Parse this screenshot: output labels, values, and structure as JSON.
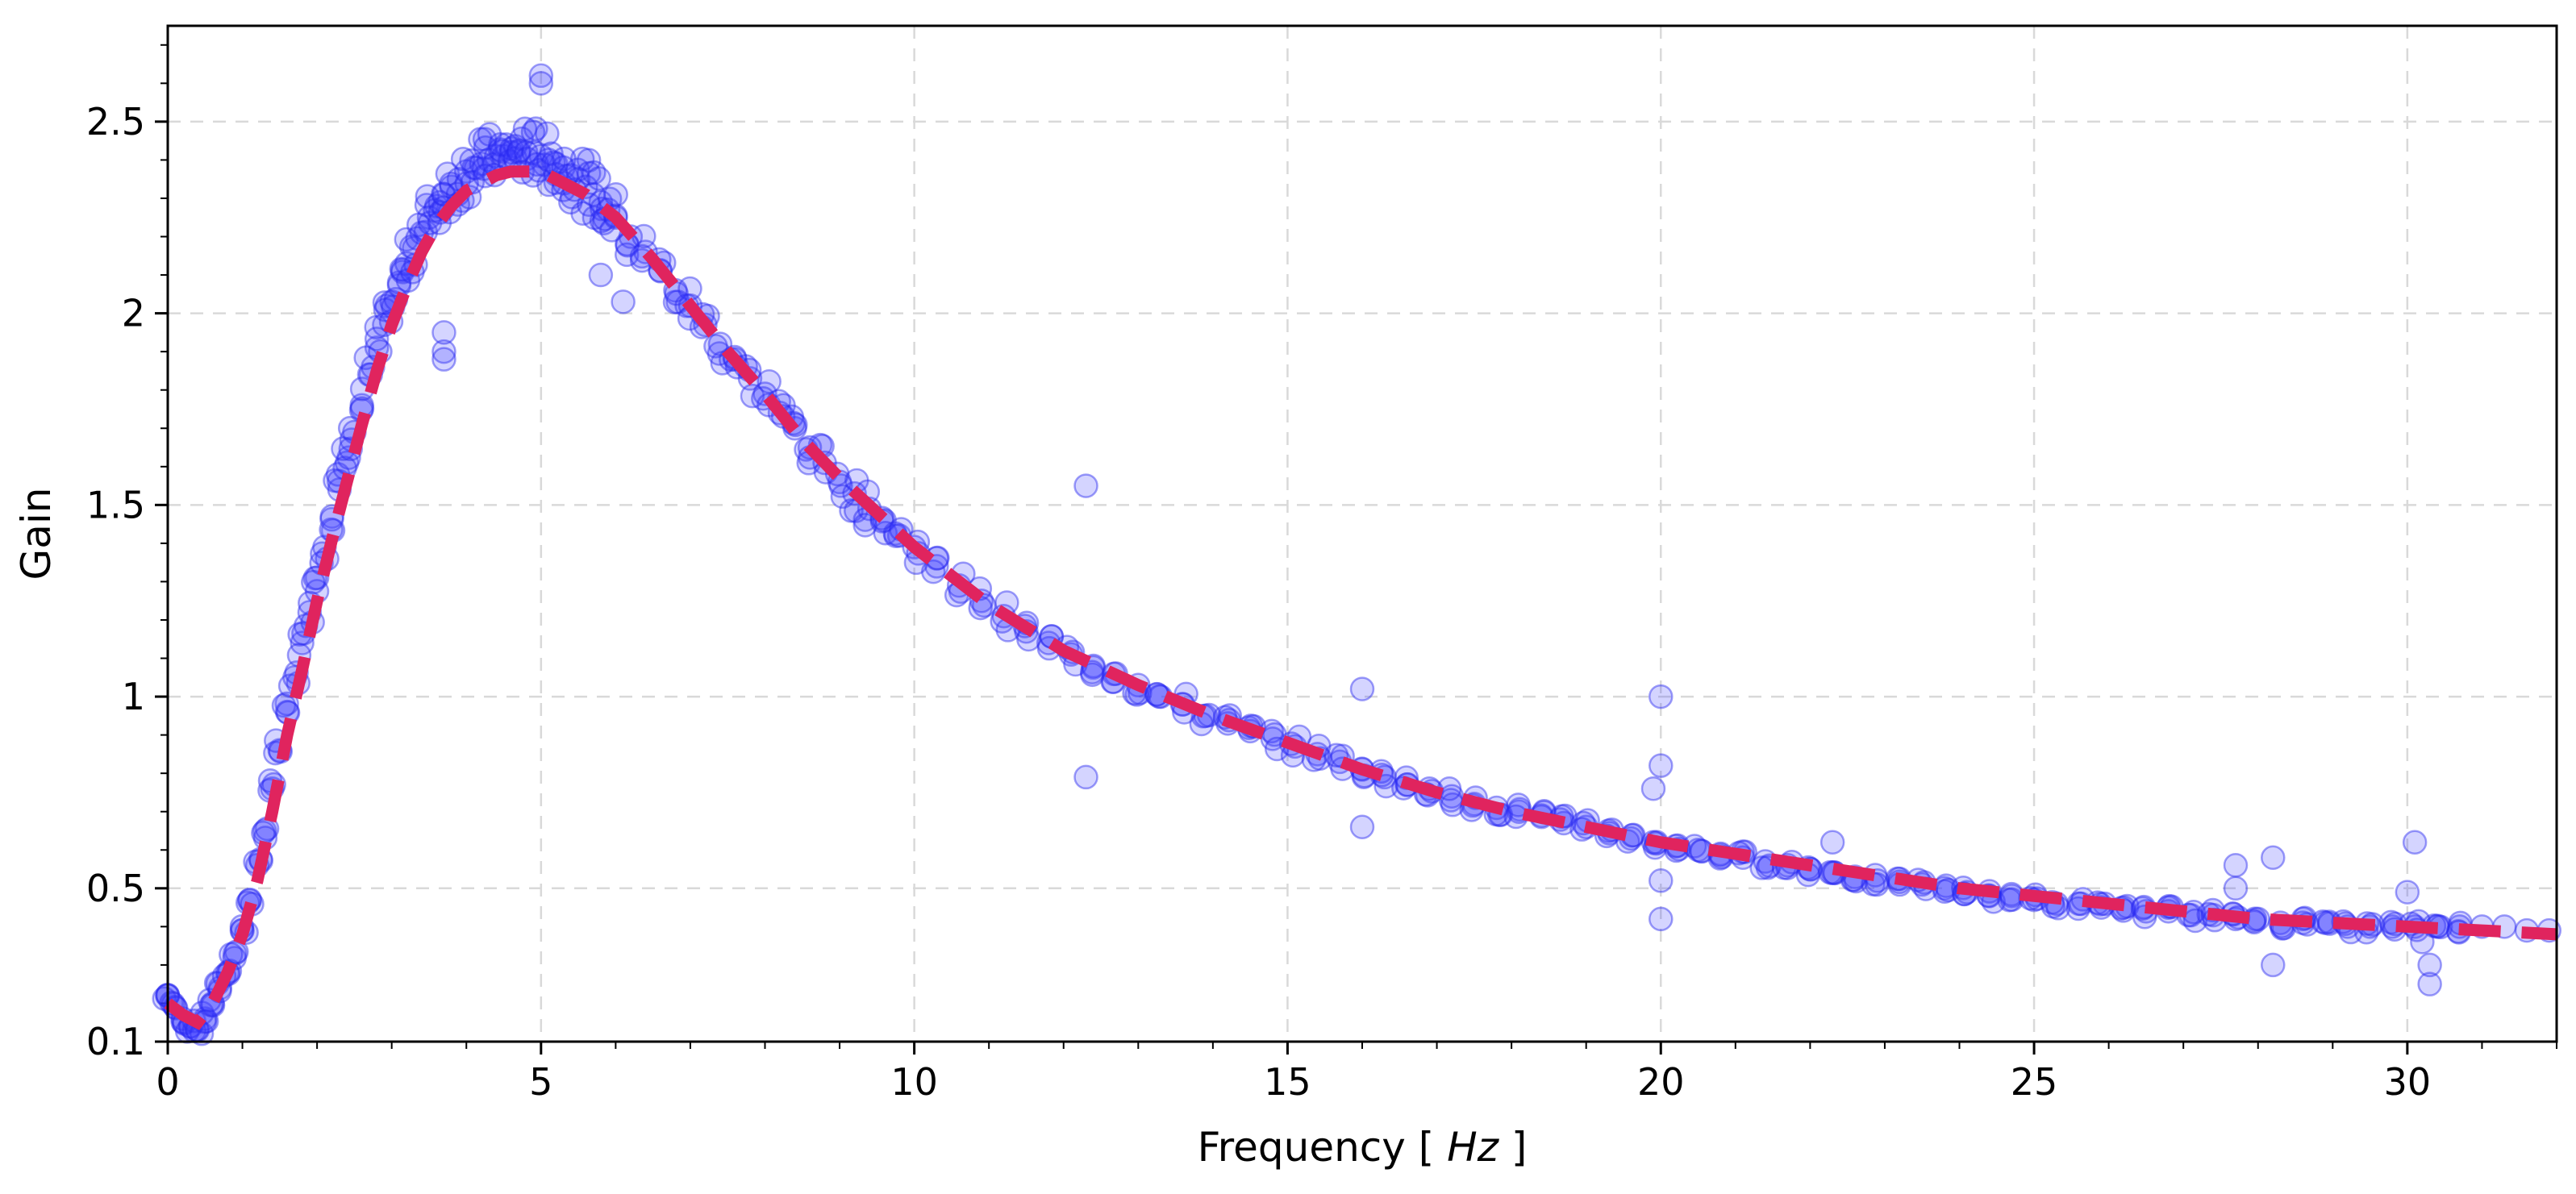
{
  "chart_data": {
    "type": "scatter",
    "xlabel": "Frequency  [ Hz ]",
    "xlabel_plain": "Frequency  [ ",
    "xlabel_unit": "Hz",
    "xlabel_close": " ]",
    "ylabel": "Gain",
    "xlim": [
      0,
      32
    ],
    "ylim": [
      0.1,
      2.75
    ],
    "x_ticks": [
      0,
      5,
      10,
      15,
      20,
      25,
      30
    ],
    "x_tick_labels": [
      "0",
      "5",
      "10",
      "15",
      "20",
      "25",
      "30"
    ],
    "y_ticks": [
      0.1,
      0.5,
      1,
      1.5,
      2,
      2.5
    ],
    "y_tick_labels": [
      "0.1",
      "0.5",
      "1",
      "1.5",
      "2",
      "2.5"
    ],
    "grid": true,
    "series": [
      {
        "style": "scatter",
        "color": "#3c3cff",
        "x": [
          0.0,
          0.1,
          0.2,
          0.3,
          0.4,
          0.5,
          0.6,
          0.7,
          0.8,
          0.9,
          1.0,
          1.1,
          1.2,
          1.3,
          1.4,
          1.5,
          1.6,
          1.7,
          1.8,
          1.9,
          2.0,
          2.1,
          2.2,
          2.3,
          2.4,
          2.5,
          2.6,
          2.7,
          2.8,
          2.9,
          3.0,
          3.1,
          3.2,
          3.3,
          3.4,
          3.5,
          3.6,
          3.7,
          3.8,
          3.9,
          4.0,
          4.1,
          4.2,
          4.3,
          4.4,
          4.5,
          4.6,
          4.7,
          4.8,
          4.9,
          5.0,
          5.1,
          5.2,
          5.3,
          5.4,
          5.5,
          5.6,
          5.7,
          5.8,
          5.9,
          6.0,
          6.2,
          6.4,
          6.6,
          6.8,
          7.0,
          7.2,
          7.4,
          7.6,
          7.8,
          8.0,
          8.2,
          8.4,
          8.6,
          8.8,
          9.0,
          9.2,
          9.4,
          9.6,
          9.8,
          10.0,
          10.3,
          10.6,
          10.9,
          11.2,
          11.5,
          11.8,
          12.1,
          12.4,
          12.7,
          13.0,
          13.3,
          13.6,
          13.9,
          14.2,
          14.5,
          14.8,
          15.1,
          15.4,
          15.7,
          16.0,
          16.3,
          16.6,
          16.9,
          17.2,
          17.5,
          17.8,
          18.1,
          18.4,
          18.7,
          19.0,
          19.3,
          19.6,
          19.9,
          20.2,
          20.5,
          20.8,
          21.1,
          21.4,
          21.7,
          22.0,
          22.3,
          22.6,
          22.9,
          23.2,
          23.5,
          23.8,
          24.1,
          24.4,
          24.7,
          25.0,
          25.3,
          25.6,
          25.9,
          26.2,
          26.5,
          26.8,
          27.1,
          27.4,
          27.7,
          28.0,
          28.3,
          28.6,
          28.9,
          29.2,
          29.5,
          29.8,
          30.1,
          30.4,
          30.7,
          31.0,
          31.3,
          31.6,
          31.9,
          3.7,
          3.7,
          3.7,
          5.0,
          5.0,
          5.8,
          6.1,
          12.3,
          12.3,
          16.0,
          16.0,
          19.9,
          20.0,
          20.0,
          20.0,
          20.0,
          22.3,
          27.7,
          27.7,
          28.2,
          28.2,
          30.0,
          30.1,
          30.2,
          30.3,
          30.3
        ],
        "y": [
          0.22,
          0.19,
          0.16,
          0.14,
          0.13,
          0.16,
          0.2,
          0.24,
          0.28,
          0.33,
          0.39,
          0.47,
          0.56,
          0.65,
          0.76,
          0.86,
          0.96,
          1.05,
          1.14,
          1.22,
          1.31,
          1.39,
          1.47,
          1.54,
          1.61,
          1.69,
          1.76,
          1.84,
          1.91,
          1.97,
          2.03,
          2.08,
          2.13,
          2.17,
          2.21,
          2.25,
          2.28,
          2.31,
          2.33,
          2.35,
          2.37,
          2.38,
          2.39,
          2.4,
          2.41,
          2.41,
          2.42,
          2.42,
          2.42,
          2.42,
          2.41,
          2.4,
          2.39,
          2.38,
          2.36,
          2.35,
          2.33,
          2.31,
          2.29,
          2.27,
          2.25,
          2.2,
          2.16,
          2.11,
          2.06,
          2.02,
          1.97,
          1.92,
          1.88,
          1.83,
          1.79,
          1.74,
          1.7,
          1.65,
          1.61,
          1.56,
          1.53,
          1.49,
          1.46,
          1.42,
          1.39,
          1.34,
          1.29,
          1.25,
          1.21,
          1.17,
          1.14,
          1.11,
          1.08,
          1.06,
          1.03,
          1.0,
          0.98,
          0.95,
          0.93,
          0.91,
          0.89,
          0.87,
          0.85,
          0.83,
          0.81,
          0.79,
          0.77,
          0.76,
          0.74,
          0.72,
          0.71,
          0.7,
          0.69,
          0.67,
          0.66,
          0.65,
          0.63,
          0.62,
          0.61,
          0.6,
          0.59,
          0.58,
          0.57,
          0.56,
          0.55,
          0.54,
          0.53,
          0.52,
          0.51,
          0.51,
          0.5,
          0.49,
          0.48,
          0.48,
          0.47,
          0.46,
          0.46,
          0.45,
          0.45,
          0.44,
          0.44,
          0.43,
          0.43,
          0.42,
          0.42,
          0.41,
          0.41,
          0.41,
          0.4,
          0.4,
          0.4,
          0.4,
          0.4,
          0.4,
          0.4,
          0.4,
          0.39,
          0.39,
          1.9,
          1.95,
          1.88,
          2.62,
          2.6,
          2.1,
          2.03,
          1.55,
          0.79,
          1.02,
          0.66,
          0.76,
          1.0,
          0.82,
          0.52,
          0.42,
          0.62,
          0.56,
          0.5,
          0.58,
          0.3,
          0.49,
          0.62,
          0.36,
          0.3,
          0.25
        ]
      },
      {
        "style": "dashed-line",
        "color": "#e0245e",
        "x": [
          0.0,
          0.2,
          0.4,
          0.6,
          0.8,
          1.0,
          1.2,
          1.4,
          1.6,
          1.8,
          2.0,
          2.2,
          2.4,
          2.6,
          2.8,
          3.0,
          3.2,
          3.4,
          3.6,
          3.8,
          4.0,
          4.2,
          4.4,
          4.6,
          4.8,
          5.0,
          5.2,
          5.4,
          5.6,
          5.8,
          6.0,
          6.5,
          7.0,
          7.5,
          8.0,
          8.5,
          9.0,
          9.5,
          10.0,
          11.0,
          12.0,
          13.0,
          14.0,
          15.0,
          16.0,
          17.0,
          18.0,
          19.0,
          20.0,
          21.0,
          22.0,
          23.0,
          24.0,
          25.0,
          26.0,
          27.0,
          28.0,
          29.0,
          30.0,
          31.0,
          32.0
        ],
        "y": [
          0.2,
          0.17,
          0.15,
          0.2,
          0.28,
          0.38,
          0.52,
          0.7,
          0.9,
          1.07,
          1.25,
          1.41,
          1.56,
          1.71,
          1.85,
          1.97,
          2.07,
          2.16,
          2.23,
          2.28,
          2.32,
          2.34,
          2.36,
          2.37,
          2.37,
          2.37,
          2.35,
          2.33,
          2.31,
          2.28,
          2.25,
          2.14,
          2.02,
          1.9,
          1.79,
          1.67,
          1.57,
          1.48,
          1.39,
          1.24,
          1.12,
          1.03,
          0.95,
          0.88,
          0.81,
          0.75,
          0.7,
          0.66,
          0.62,
          0.59,
          0.56,
          0.53,
          0.5,
          0.48,
          0.46,
          0.44,
          0.42,
          0.41,
          0.4,
          0.39,
          0.38
        ]
      }
    ]
  }
}
